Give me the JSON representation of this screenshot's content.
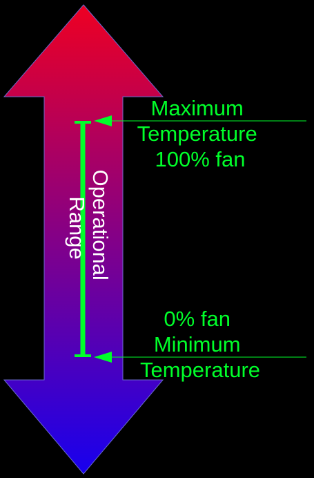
{
  "colors": {
    "background": "#000000",
    "gradient_top": "#ee0022",
    "gradient_bottom": "#1800ee",
    "accent": "#00ff2a",
    "range_label": "#ffffff"
  },
  "arrow": {
    "direction": "bidirectional-vertical"
  },
  "range_label": {
    "line1": "Operational",
    "line2": "Range"
  },
  "max_label": {
    "line1": "Maximum",
    "line2": "Temperature",
    "line3": "100% fan"
  },
  "min_label": {
    "line1": "0% fan",
    "line2": "Minimum",
    "line3": "Temperature"
  }
}
